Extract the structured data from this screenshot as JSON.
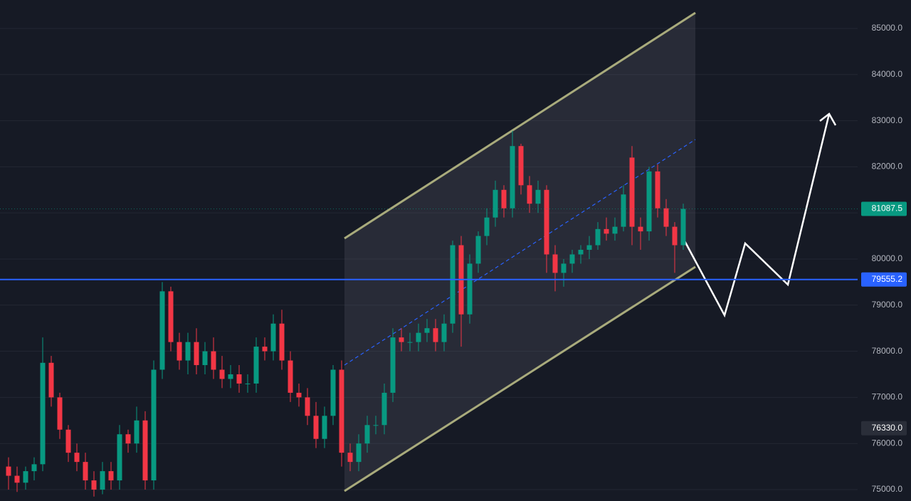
{
  "chart_data": {
    "type": "candlestick",
    "open": [
      75500,
      75300,
      75150,
      75400,
      75550,
      77750,
      77000,
      76300,
      75800,
      75600,
      75200,
      75000,
      75400,
      75200,
      76200,
      76000,
      76500,
      75200,
      77600,
      79300,
      78200,
      77800,
      78200,
      77700,
      78000,
      77600,
      77400,
      77500,
      77300,
      77300,
      78100,
      78000,
      78600,
      77800,
      77100,
      77000,
      76600,
      76100,
      76600,
      77600,
      75800,
      75600,
      76000,
      76400,
      76400,
      77100,
      78300,
      78200,
      78200,
      78400,
      78500,
      78200,
      78600,
      80300,
      78800,
      79900,
      80500,
      80900,
      81500,
      81100,
      82450,
      81600,
      81200,
      81500,
      80100,
      79700,
      79900,
      80100,
      80200,
      80300,
      80650,
      80550,
      80700,
      82200,
      80700,
      80600,
      81900,
      81100,
      80700,
      80300
    ],
    "high": [
      75700,
      75500,
      75500,
      75700,
      78300,
      77900,
      77100,
      76400,
      76000,
      75800,
      75400,
      75600,
      75600,
      76400,
      76300,
      76800,
      76700,
      77800,
      79500,
      79400,
      78400,
      78400,
      78500,
      78200,
      78300,
      77900,
      77700,
      77700,
      77500,
      78300,
      78300,
      78800,
      78900,
      78000,
      77300,
      77200,
      76900,
      76800,
      77700,
      77800,
      76000,
      76200,
      76600,
      76600,
      77300,
      78500,
      78500,
      78400,
      78600,
      78700,
      78700,
      78800,
      80400,
      80500,
      80100,
      80600,
      81100,
      81700,
      81600,
      82780,
      82500,
      81800,
      81700,
      81600,
      80300,
      80000,
      80200,
      80300,
      80500,
      80800,
      80900,
      80900,
      81600,
      82450,
      80900,
      82000,
      82050,
      81300,
      80800,
      81200
    ],
    "low": [
      75000,
      74950,
      75000,
      75200,
      75400,
      76800,
      76100,
      75600,
      75400,
      75000,
      74850,
      74900,
      75000,
      75000,
      75800,
      75800,
      75000,
      75000,
      77400,
      78000,
      77600,
      77500,
      77500,
      77500,
      77400,
      77200,
      77200,
      77100,
      77100,
      77100,
      77800,
      77800,
      77600,
      76900,
      76800,
      76400,
      75900,
      75900,
      76400,
      75500,
      75400,
      75400,
      75800,
      76200,
      76200,
      76900,
      78000,
      78000,
      78000,
      78200,
      78000,
      78000,
      78400,
      78100,
      78600,
      79700,
      80300,
      80700,
      80900,
      80900,
      81400,
      81000,
      81000,
      79700,
      79300,
      79400,
      79700,
      79900,
      80000,
      80200,
      80400,
      80400,
      80600,
      80300,
      80200,
      80400,
      80900,
      80500,
      79700,
      80200
    ],
    "close": [
      75300,
      75150,
      75400,
      75550,
      77750,
      77000,
      76300,
      75800,
      75600,
      75200,
      75000,
      75400,
      75200,
      76200,
      76000,
      76500,
      75200,
      77600,
      79300,
      78200,
      77800,
      78200,
      77700,
      78000,
      77600,
      77400,
      77500,
      77300,
      77300,
      78100,
      78000,
      78600,
      77800,
      77100,
      77000,
      76600,
      76100,
      76600,
      77600,
      75800,
      75600,
      76000,
      76400,
      76400,
      77100,
      78300,
      78200,
      78200,
      78400,
      78500,
      78200,
      78600,
      80300,
      78800,
      79900,
      80500,
      80900,
      81500,
      81100,
      82450,
      81600,
      81200,
      81500,
      80100,
      79700,
      79900,
      80100,
      80200,
      80300,
      80650,
      80550,
      80700,
      81400,
      80700,
      80600,
      81900,
      81100,
      80700,
      80300,
      81087.5
    ],
    "up_color": "#089981",
    "down_color": "#f23645",
    "ylim": [
      74753,
      85617
    ],
    "yticks": [
      {
        "value": 75000,
        "label": "75000.0"
      },
      {
        "value": 76000,
        "label": "76000.0"
      },
      {
        "value": 77000,
        "label": "77000.0"
      },
      {
        "value": 78000,
        "label": "78000.0"
      },
      {
        "value": 79000,
        "label": "79000.0"
      },
      {
        "value": 80000,
        "label": "80000.0"
      },
      {
        "value": 81000,
        "label": "81000.0"
      },
      {
        "value": 82000,
        "label": "82000.0"
      },
      {
        "value": 83000,
        "label": "83000.0"
      },
      {
        "value": 84000,
        "label": "84000.0"
      },
      {
        "value": 85000,
        "label": "85000.0"
      }
    ],
    "grid": true,
    "horizontal_line": {
      "value": 79555.2,
      "label": "79555.2",
      "color": "#2962ff"
    },
    "last_price": {
      "value": 81087.5,
      "label": "81087.5",
      "color": "#089981"
    },
    "marker_price": {
      "value": 76330.0,
      "label": "76330.0",
      "color": "#2a2e39"
    }
  }
}
